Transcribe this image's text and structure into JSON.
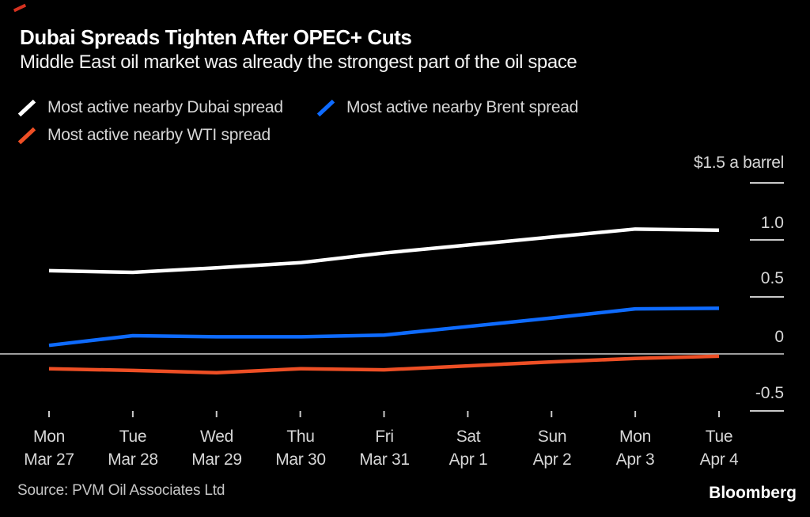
{
  "header": {
    "title": "Dubai Spreads Tighten After OPEC+ Cuts",
    "subtitle": "Middle East oil market was already the strongest part of the oil space"
  },
  "legend": {
    "items": [
      {
        "label": "Most active nearby Dubai spread",
        "color": "#ffffff"
      },
      {
        "label": "Most active nearby Brent spread",
        "color": "#0e6bff"
      },
      {
        "label": "Most active nearby WTI spread",
        "color": "#ee4f25"
      }
    ]
  },
  "chart_data": {
    "type": "line",
    "title": "Dubai Spreads Tighten After OPEC+ Cuts",
    "subtitle": "Middle East oil market was already the strongest part of the oil space",
    "unit_label": "$1.5 a barrel",
    "categories": [
      {
        "day": "Mon",
        "date": "Mar 27"
      },
      {
        "day": "Tue",
        "date": "Mar 28"
      },
      {
        "day": "Wed",
        "date": "Mar 29"
      },
      {
        "day": "Thu",
        "date": "Mar 30"
      },
      {
        "day": "Fri",
        "date": "Mar 31"
      },
      {
        "day": "Sat",
        "date": "Apr 1"
      },
      {
        "day": "Sun",
        "date": "Apr 2"
      },
      {
        "day": "Mon",
        "date": "Apr 3"
      },
      {
        "day": "Tue",
        "date": "Apr 4"
      }
    ],
    "series": [
      {
        "name": "Most active nearby Dubai spread",
        "color": "#ffffff",
        "values": [
          0.73,
          0.715,
          0.755,
          0.8,
          0.885,
          0.955,
          1.025,
          1.095,
          1.085
        ]
      },
      {
        "name": "Most active nearby Brent spread",
        "color": "#0e6bff",
        "values": [
          0.075,
          0.16,
          0.15,
          0.15,
          0.165,
          0.24,
          0.315,
          0.395,
          0.4
        ]
      },
      {
        "name": "Most active nearby WTI spread",
        "color": "#ee4f25",
        "values": [
          -0.13,
          -0.145,
          -0.165,
          -0.13,
          -0.14,
          -0.105,
          -0.07,
          -0.04,
          -0.02
        ]
      }
    ],
    "y_axis": {
      "ticks": [
        1.5,
        1.0,
        0.5,
        0,
        -0.5
      ],
      "labels": [
        "1.0",
        "0.5",
        "0",
        "-0.5"
      ],
      "ylim": [
        -0.75,
        1.65
      ],
      "grid": "off",
      "zero_line": true
    },
    "legend_position": "top-left"
  },
  "footer": {
    "source": "Source: PVM Oil Associates Ltd",
    "brand": "Bloomberg"
  },
  "colors": {
    "background": "#000000",
    "dubai_line": "#ffffff",
    "brent_line": "#0e6bff",
    "wti_line": "#ee4f25",
    "zero_line": "#9e9e9e",
    "tick": "#c9c9c9",
    "red_mark": "#d63220"
  }
}
